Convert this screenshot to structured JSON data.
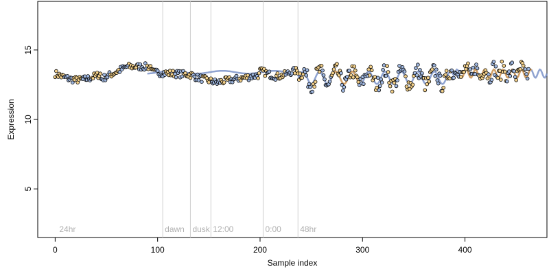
{
  "chart_data": {
    "type": "scatter",
    "title": "",
    "xlabel": "Sample index",
    "ylabel": "Expression",
    "xlim": [
      -17,
      480
    ],
    "ylim": [
      1.5,
      18.5
    ],
    "x_ticks": [
      0,
      100,
      200,
      300,
      400
    ],
    "y_ticks": [
      5,
      10,
      15
    ],
    "grid": false,
    "legend": "none",
    "phase_markers": [
      {
        "x": 2,
        "label": "24hr",
        "line": false
      },
      {
        "x": 105,
        "label": "dawn",
        "line": true
      },
      {
        "x": 132,
        "label": "dusk",
        "line": true
      },
      {
        "x": 152,
        "label": "12:00",
        "line": true
      },
      {
        "x": 203,
        "label": "0:00",
        "line": true
      },
      {
        "x": 237,
        "label": "48hr",
        "line": true
      }
    ],
    "fitted_curves": [
      {
        "color": "#7b93c9",
        "segments": [
          [
            90,
            480
          ]
        ]
      },
      {
        "color": "#e0a050",
        "segments": [
          [
            270,
            300
          ],
          [
            395,
            465
          ]
        ]
      }
    ],
    "point_colors": {
      "light": "#f3d08a",
      "dark": "#9fb7e0",
      "stroke": "#000000",
      "marker": "#d0d0d0"
    }
  }
}
